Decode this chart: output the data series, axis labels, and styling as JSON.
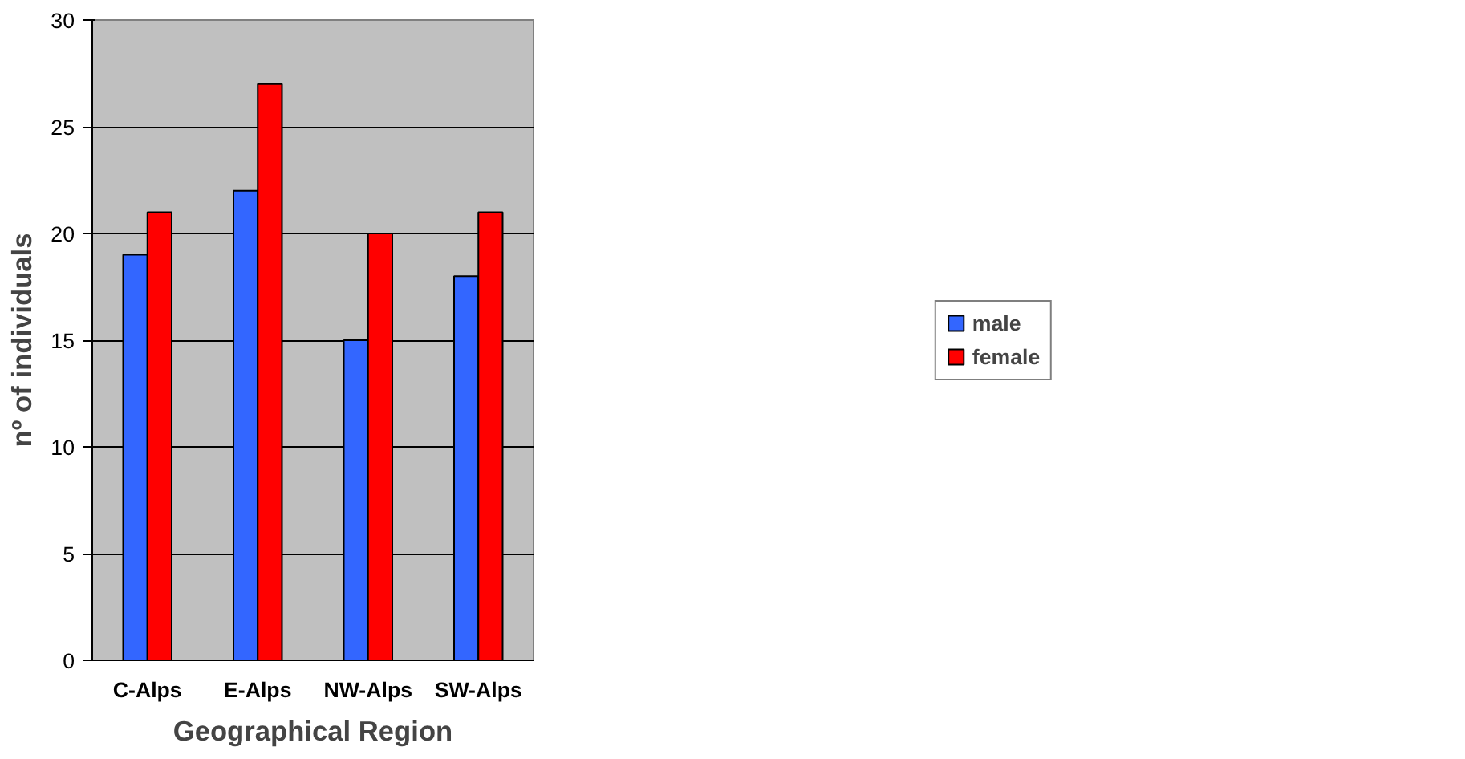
{
  "chart_data": {
    "type": "bar",
    "xlabel": "Geographical Region",
    "ylabel": "nº of individuals",
    "categories": [
      "C-Alps",
      "E-Alps",
      "NW-Alps",
      "SW-Alps"
    ],
    "series": [
      {
        "name": "male",
        "color": "#3366ff",
        "values": [
          19,
          22,
          15,
          18
        ]
      },
      {
        "name": "female",
        "color": "#ff0000",
        "values": [
          21,
          27,
          20,
          21
        ]
      }
    ],
    "ylim": [
      0,
      30
    ],
    "yticks": [
      0,
      5,
      10,
      15,
      20,
      25,
      30
    ],
    "grid": "y",
    "legend": "right"
  }
}
